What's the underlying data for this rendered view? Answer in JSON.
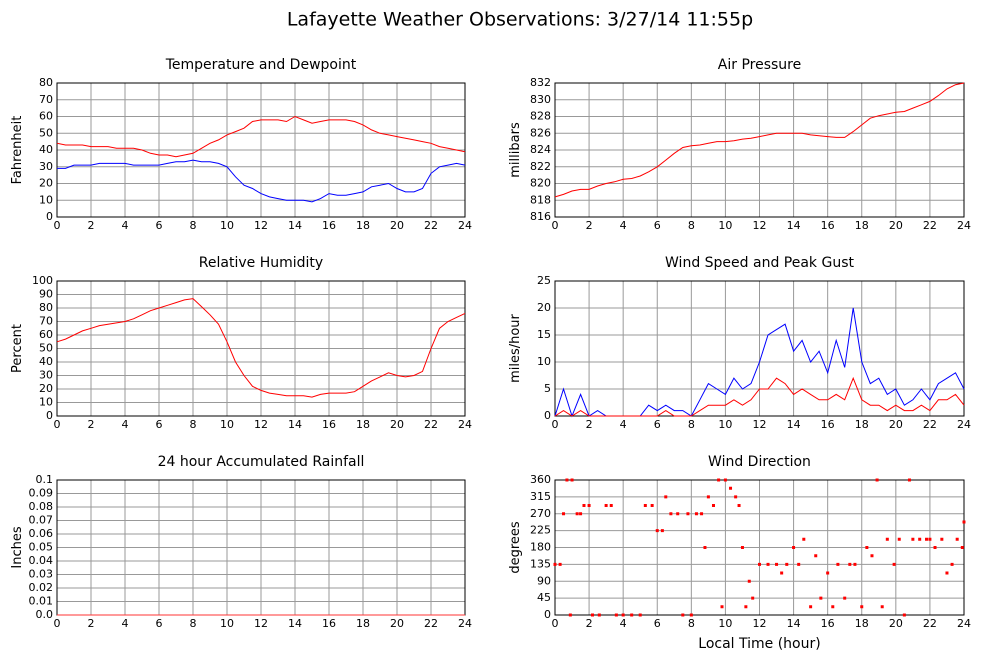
{
  "title": "Lafayette Weather Observations: 3/27/14 11:55p",
  "chart_data": [
    {
      "type": "line",
      "title": "Temperature and Dewpoint",
      "ylabel": "Fahrenheit",
      "xlim": [
        0,
        24
      ],
      "xticks": [
        0,
        2,
        4,
        6,
        8,
        10,
        12,
        14,
        16,
        18,
        20,
        22,
        24
      ],
      "ylim": [
        0,
        80
      ],
      "yticks": [
        0,
        10,
        20,
        30,
        40,
        50,
        60,
        70,
        80
      ],
      "grid": true,
      "x": [
        0,
        0.5,
        1,
        1.5,
        2,
        2.5,
        3,
        3.5,
        4,
        4.5,
        5,
        5.5,
        6,
        6.5,
        7,
        7.5,
        8,
        8.5,
        9,
        9.5,
        10,
        10.5,
        11,
        11.5,
        12,
        12.5,
        13,
        13.5,
        14,
        14.5,
        15,
        15.5,
        16,
        16.5,
        17,
        17.5,
        18,
        18.5,
        19,
        19.5,
        20,
        20.5,
        21,
        21.5,
        22,
        22.5,
        23,
        23.5,
        24
      ],
      "series": [
        {
          "color": "#ff0000",
          "values": [
            44,
            43,
            43,
            43,
            42,
            42,
            42,
            41,
            41,
            41,
            40,
            38,
            37,
            37,
            36,
            37,
            38,
            41,
            44,
            46,
            49,
            51,
            53,
            57,
            58,
            58,
            58,
            57,
            60,
            58,
            56,
            57,
            58,
            58,
            58,
            57,
            55,
            52,
            50,
            49,
            48,
            47,
            46,
            45,
            44,
            42,
            41,
            40,
            39
          ]
        },
        {
          "color": "#0000ff",
          "values": [
            29,
            29,
            31,
            31,
            31,
            32,
            32,
            32,
            32,
            31,
            31,
            31,
            31,
            32,
            33,
            33,
            34,
            33,
            33,
            32,
            30,
            24,
            19,
            17,
            14,
            12,
            11,
            10,
            10,
            10,
            9,
            11,
            14,
            13,
            13,
            14,
            15,
            18,
            19,
            20,
            17,
            15,
            15,
            17,
            26,
            30,
            31,
            32,
            31
          ]
        }
      ]
    },
    {
      "type": "line",
      "title": "Air Pressure",
      "ylabel": "millibars",
      "xlim": [
        0,
        24
      ],
      "xticks": [
        0,
        2,
        4,
        6,
        8,
        10,
        12,
        14,
        16,
        18,
        20,
        22,
        24
      ],
      "ylim": [
        816,
        832
      ],
      "yticks": [
        816,
        818,
        820,
        822,
        824,
        826,
        828,
        830,
        832
      ],
      "grid": true,
      "x": [
        0,
        0.5,
        1,
        1.5,
        2,
        2.5,
        3,
        3.5,
        4,
        4.5,
        5,
        5.5,
        6,
        6.5,
        7,
        7.5,
        8,
        8.5,
        9,
        9.5,
        10,
        10.5,
        11,
        11.5,
        12,
        12.5,
        13,
        13.5,
        14,
        14.5,
        15,
        15.5,
        16,
        16.5,
        17,
        17.5,
        18,
        18.5,
        19,
        19.5,
        20,
        20.5,
        21,
        21.5,
        22,
        22.5,
        23,
        23.5,
        24
      ],
      "series": [
        {
          "color": "#ff0000",
          "values": [
            818.4,
            818.7,
            819.1,
            819.3,
            819.3,
            819.7,
            820,
            820.2,
            820.5,
            820.6,
            820.9,
            821.4,
            822,
            822.8,
            823.6,
            824.3,
            824.5,
            824.6,
            824.8,
            825,
            825,
            825.1,
            825.3,
            825.4,
            825.6,
            825.8,
            826,
            826,
            826,
            826,
            825.8,
            825.7,
            825.6,
            825.5,
            825.5,
            826.2,
            827,
            827.8,
            828.1,
            828.3,
            828.5,
            828.6,
            829,
            829.4,
            829.8,
            830.5,
            831.3,
            831.8,
            832
          ]
        }
      ]
    },
    {
      "type": "line",
      "title": "Relative Humidity",
      "ylabel": "Percent",
      "xlim": [
        0,
        24
      ],
      "xticks": [
        0,
        2,
        4,
        6,
        8,
        10,
        12,
        14,
        16,
        18,
        20,
        22,
        24
      ],
      "ylim": [
        0,
        100
      ],
      "yticks": [
        0,
        10,
        20,
        30,
        40,
        50,
        60,
        70,
        80,
        90,
        100
      ],
      "grid": true,
      "x": [
        0,
        0.5,
        1,
        1.5,
        2,
        2.5,
        3,
        3.5,
        4,
        4.5,
        5,
        5.5,
        6,
        6.5,
        7,
        7.5,
        8,
        8.5,
        9,
        9.5,
        10,
        10.5,
        11,
        11.5,
        12,
        12.5,
        13,
        13.5,
        14,
        14.5,
        15,
        15.5,
        16,
        16.5,
        17,
        17.5,
        18,
        18.5,
        19,
        19.5,
        20,
        20.5,
        21,
        21.5,
        22,
        22.5,
        23,
        23.5,
        24
      ],
      "series": [
        {
          "color": "#ff0000",
          "values": [
            55,
            57,
            60,
            63,
            65,
            67,
            68,
            69,
            70,
            72,
            75,
            78,
            80,
            82,
            84,
            86,
            87,
            81,
            75,
            68,
            55,
            40,
            30,
            22,
            19,
            17,
            16,
            15,
            15,
            15,
            14,
            16,
            17,
            17,
            17,
            18,
            22,
            26,
            29,
            32,
            30,
            29,
            30,
            33,
            50,
            65,
            70,
            73,
            76
          ]
        }
      ]
    },
    {
      "type": "line",
      "title": "Wind Speed and Peak Gust",
      "ylabel": "miles/hour",
      "xlim": [
        0,
        24
      ],
      "xticks": [
        0,
        2,
        4,
        6,
        8,
        10,
        12,
        14,
        16,
        18,
        20,
        22,
        24
      ],
      "ylim": [
        0,
        25
      ],
      "yticks": [
        0,
        5,
        10,
        15,
        20,
        25
      ],
      "grid": true,
      "x": [
        0,
        0.5,
        1,
        1.5,
        2,
        2.5,
        3,
        3.5,
        4,
        4.5,
        5,
        5.5,
        6,
        6.5,
        7,
        7.5,
        8,
        8.5,
        9,
        9.5,
        10,
        10.5,
        11,
        11.5,
        12,
        12.5,
        13,
        13.5,
        14,
        14.5,
        15,
        15.5,
        16,
        16.5,
        17,
        17.5,
        18,
        18.5,
        19,
        19.5,
        20,
        20.5,
        21,
        21.5,
        22,
        22.5,
        23,
        23.5,
        24
      ],
      "series": [
        {
          "color": "#0000ff",
          "values": [
            0,
            5,
            0,
            4,
            0,
            1,
            0,
            0,
            0,
            0,
            0,
            2,
            1,
            2,
            1,
            1,
            0,
            3,
            6,
            5,
            4,
            7,
            5,
            6,
            10,
            15,
            16,
            17,
            12,
            14,
            10,
            12,
            8,
            14,
            9,
            20,
            10,
            6,
            7,
            4,
            5,
            2,
            3,
            5,
            3,
            6,
            7,
            8,
            5
          ]
        },
        {
          "color": "#ff0000",
          "values": [
            0,
            1,
            0,
            1,
            0,
            0,
            0,
            0,
            0,
            0,
            0,
            0,
            0,
            1,
            0,
            0,
            0,
            1,
            2,
            2,
            2,
            3,
            2,
            3,
            5,
            5,
            7,
            6,
            4,
            5,
            4,
            3,
            3,
            4,
            3,
            7,
            3,
            2,
            2,
            1,
            2,
            1,
            1,
            2,
            1,
            3,
            3,
            4,
            2
          ]
        }
      ]
    },
    {
      "type": "line",
      "title": "24 hour Accumulated Rainfall",
      "ylabel": "Inches",
      "xlim": [
        0,
        24
      ],
      "xticks": [
        0,
        2,
        4,
        6,
        8,
        10,
        12,
        14,
        16,
        18,
        20,
        22,
        24
      ],
      "ylim": [
        0,
        0.1
      ],
      "yticks": [
        {
          "value": 0,
          "label": "0.0"
        },
        0.01,
        0.02,
        0.03,
        0.04,
        0.05,
        0.06,
        0.07,
        0.08,
        0.09,
        0.1
      ],
      "grid": true,
      "x": [
        0,
        24
      ],
      "series": [
        {
          "color": "#ff3333",
          "values": [
            0,
            0
          ]
        }
      ]
    },
    {
      "type": "scatter",
      "title": "Wind Direction",
      "ylabel": "degrees",
      "xlabel": "Local Time (hour)",
      "xlim": [
        0,
        24
      ],
      "xticks": [
        0,
        2,
        4,
        6,
        8,
        10,
        12,
        14,
        16,
        18,
        20,
        22,
        24
      ],
      "ylim": [
        0,
        360
      ],
      "yticks": [
        0,
        45,
        90,
        135,
        180,
        225,
        270,
        315,
        360
      ],
      "grid": true,
      "series": [
        {
          "color": "#ff0000",
          "x": [
            0,
            0.3,
            0.5,
            0.7,
            0.9,
            1,
            1.3,
            1.5,
            1.7,
            2,
            2.2,
            2.6,
            3,
            3.3,
            3.6,
            4,
            4.5,
            5,
            5.3,
            5.7,
            6,
            6.3,
            6.5,
            6.8,
            7.2,
            7.5,
            7.8,
            8,
            8.3,
            8.6,
            8.8,
            9,
            9.3,
            9.6,
            9.8,
            10,
            10.3,
            10.6,
            10.8,
            11,
            11.2,
            11.4,
            11.6,
            12,
            12.5,
            13,
            13.3,
            13.6,
            14,
            14.3,
            14.6,
            15,
            15.3,
            15.6,
            16,
            16.3,
            16.6,
            17,
            17.3,
            17.6,
            18,
            18.3,
            18.6,
            18.9,
            19.2,
            19.5,
            19.9,
            20.2,
            20.5,
            20.8,
            21,
            21.4,
            21.8,
            22,
            22.3,
            22.7,
            23,
            23.3,
            23.6,
            23.9,
            24
          ],
          "values": [
            135,
            135,
            270,
            360,
            0,
            360,
            270,
            270,
            292,
            292,
            0,
            0,
            292,
            292,
            0,
            0,
            0,
            0,
            292,
            292,
            225,
            225,
            315,
            270,
            270,
            0,
            270,
            0,
            270,
            270,
            180,
            315,
            292,
            360,
            22,
            360,
            338,
            315,
            292,
            180,
            22,
            90,
            45,
            135,
            135,
            135,
            112,
            135,
            180,
            135,
            202,
            22,
            158,
            45,
            112,
            22,
            135,
            45,
            135,
            135,
            22,
            180,
            158,
            360,
            22,
            202,
            135,
            202,
            0,
            360,
            202,
            202,
            202,
            202,
            180,
            202,
            112,
            135,
            202,
            180,
            248
          ]
        }
      ]
    }
  ]
}
